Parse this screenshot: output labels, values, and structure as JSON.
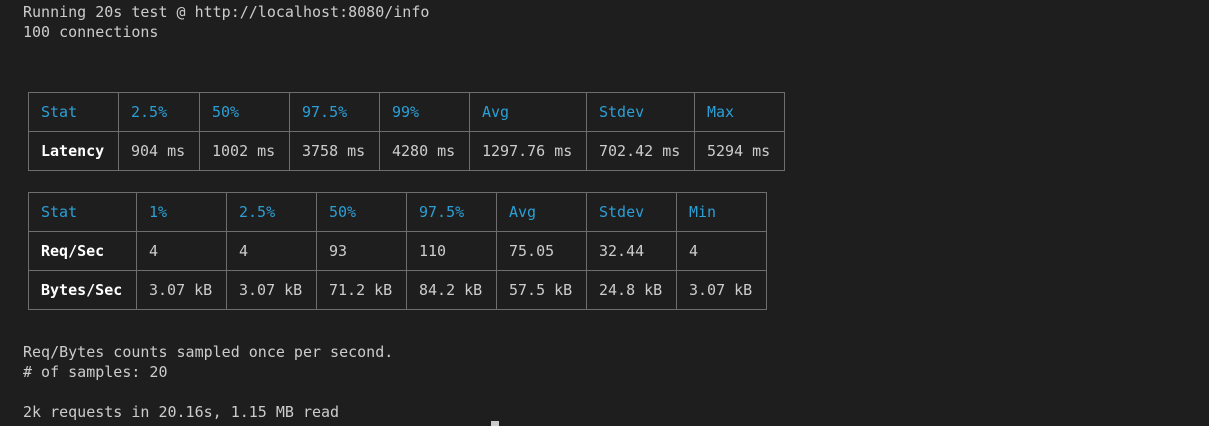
{
  "terminal": {
    "header_line1": "Running 20s test @ http://localhost:8080/info",
    "header_line2": "100 connections",
    "footer_line1": "Req/Bytes counts sampled once per second.",
    "footer_line2": "# of samples: 20",
    "footer_line3": "2k requests in 20.16s, 1.15 MB read"
  },
  "latency_table": {
    "headers": [
      "Stat",
      "2.5%",
      "50%",
      "97.5%",
      "99%",
      "Avg",
      "Stdev",
      "Max"
    ],
    "rows": [
      {
        "label": "Latency",
        "values": [
          "904 ms",
          "1002 ms",
          "3758 ms",
          "4280 ms",
          "1297.76 ms",
          "702.42 ms",
          "5294 ms"
        ]
      }
    ]
  },
  "throughput_table": {
    "headers": [
      "Stat",
      "1%",
      "2.5%",
      "50%",
      "97.5%",
      "Avg",
      "Stdev",
      "Min"
    ],
    "rows": [
      {
        "label": "Req/Sec",
        "values": [
          "4",
          "4",
          "93",
          "110",
          "75.05",
          "32.44",
          "4"
        ]
      },
      {
        "label": "Bytes/Sec",
        "values": [
          "3.07 kB",
          "3.07 kB",
          "71.2 kB",
          "84.2 kB",
          "57.5 kB",
          "24.8 kB",
          "3.07 kB"
        ]
      }
    ]
  },
  "colors": {
    "background": "#1e1e1e",
    "header_text": "#2b9fd6",
    "body_text": "#cccccc",
    "border": "#6e6e6e"
  }
}
